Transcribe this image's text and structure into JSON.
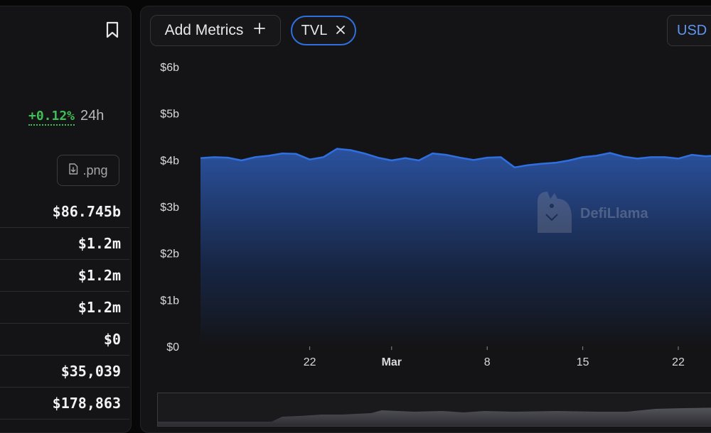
{
  "left_panel": {
    "change": {
      "value": "+0.12%",
      "period": "24h"
    },
    "download": {
      "label": ".png"
    },
    "stats": [
      "$86.745b",
      "$1.2m",
      "$1.2m",
      "$1.2m",
      "$0",
      "$35,039",
      "$178,863"
    ]
  },
  "toolbar": {
    "add_metrics_label": "Add Metrics",
    "active_metric": "TVL",
    "currency": "USD"
  },
  "watermark": "DefiLlama",
  "colors": {
    "line": "#2f6fe0",
    "accent_green": "#3fbf55",
    "currency_blue": "#5f95f0"
  },
  "chart_data": {
    "type": "area",
    "y_tick_labels": [
      "$0",
      "$1b",
      "$2b",
      "$3b",
      "$4b",
      "$5b",
      "$6b"
    ],
    "ylim": [
      0,
      6
    ],
    "y_unit": "b",
    "x_tick_labels": [
      {
        "label": "22",
        "day": 8,
        "bold": false
      },
      {
        "label": "Mar",
        "day": 14,
        "bold": true
      },
      {
        "label": "8",
        "day": 21,
        "bold": false
      },
      {
        "label": "15",
        "day": 28,
        "bold": false
      },
      {
        "label": "22",
        "day": 35,
        "bold": false
      }
    ],
    "series": [
      {
        "values": [
          4.04,
          4.06,
          4.05,
          3.99,
          4.06,
          4.09,
          4.14,
          4.13,
          4.01,
          4.06,
          4.24,
          4.21,
          4.14,
          4.05,
          3.99,
          4.04,
          3.99,
          4.14,
          4.11,
          4.05,
          4.0,
          4.05,
          4.06,
          3.84,
          3.89,
          3.92,
          3.94,
          3.99,
          4.06,
          4.09,
          4.15,
          4.07,
          4.03,
          4.06,
          4.06,
          4.03,
          4.11,
          4.08,
          4.1
        ]
      }
    ]
  }
}
